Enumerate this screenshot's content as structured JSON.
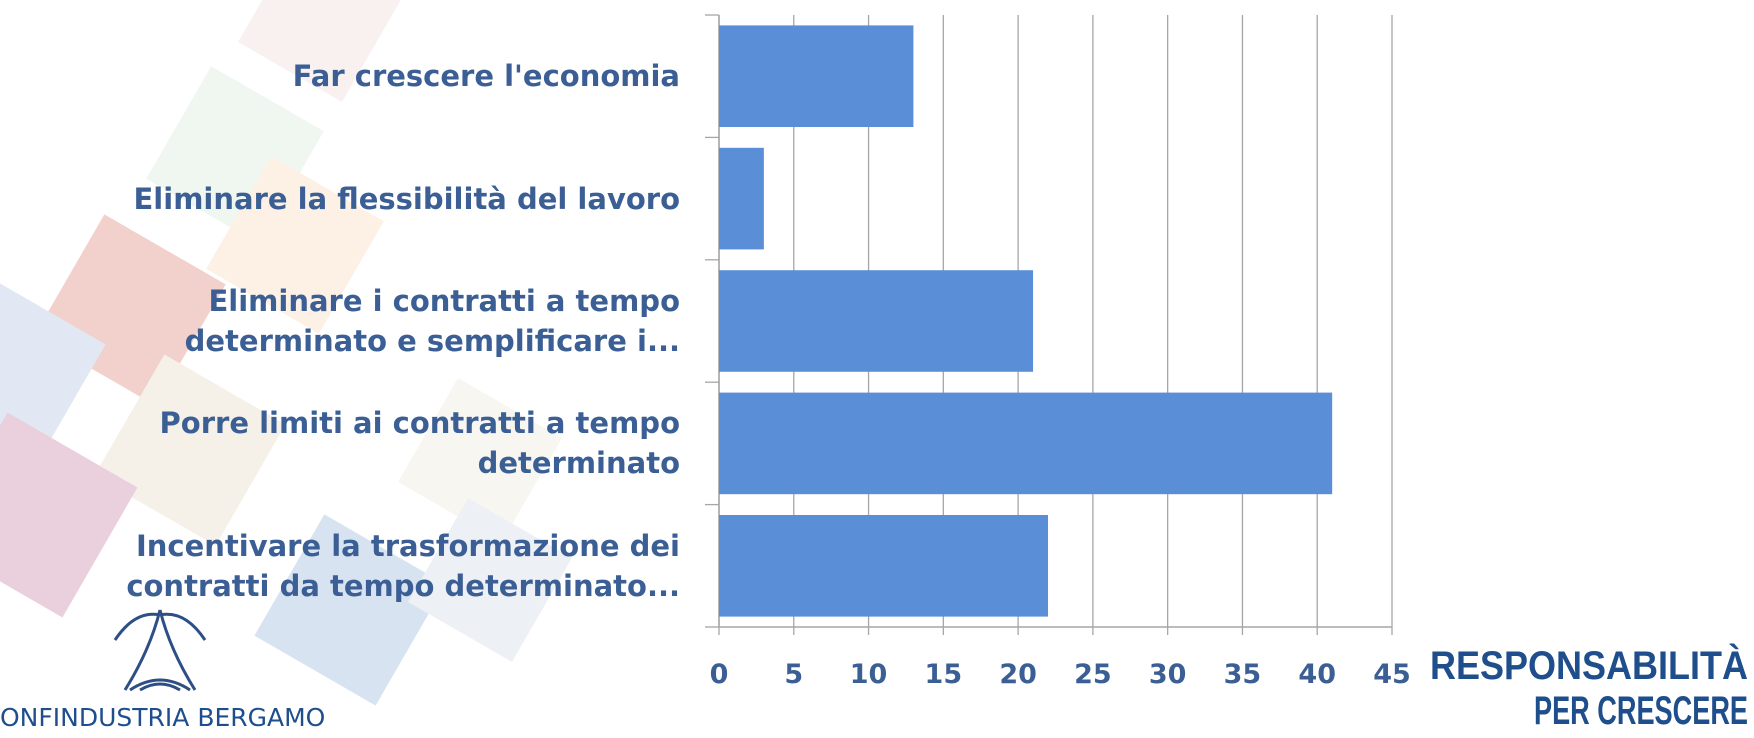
{
  "chart_data": {
    "type": "barh",
    "categories": [
      "Far crescere l'economia",
      "Eliminare la flessibilità del lavoro",
      "Eliminare i contratti a tempo\ndeterminato e semplificare i...",
      "Porre limiti ai contratti a tempo\ndeterminato",
      "Incentivare la trasformazione dei\ncontratti da tempo determinato..."
    ],
    "values": [
      13,
      3,
      21,
      41,
      22
    ],
    "color": "#5a8fd8",
    "xlim": [
      0,
      45
    ],
    "xticks": [
      0,
      5,
      10,
      15,
      20,
      25,
      30,
      35,
      40,
      45
    ],
    "grid": true
  },
  "logo": {
    "text": "ONFINDUSTRIA BERGAMO"
  },
  "brand": {
    "line1": "RESPONSABILITÀ",
    "line2": "PER CRESCERE"
  }
}
